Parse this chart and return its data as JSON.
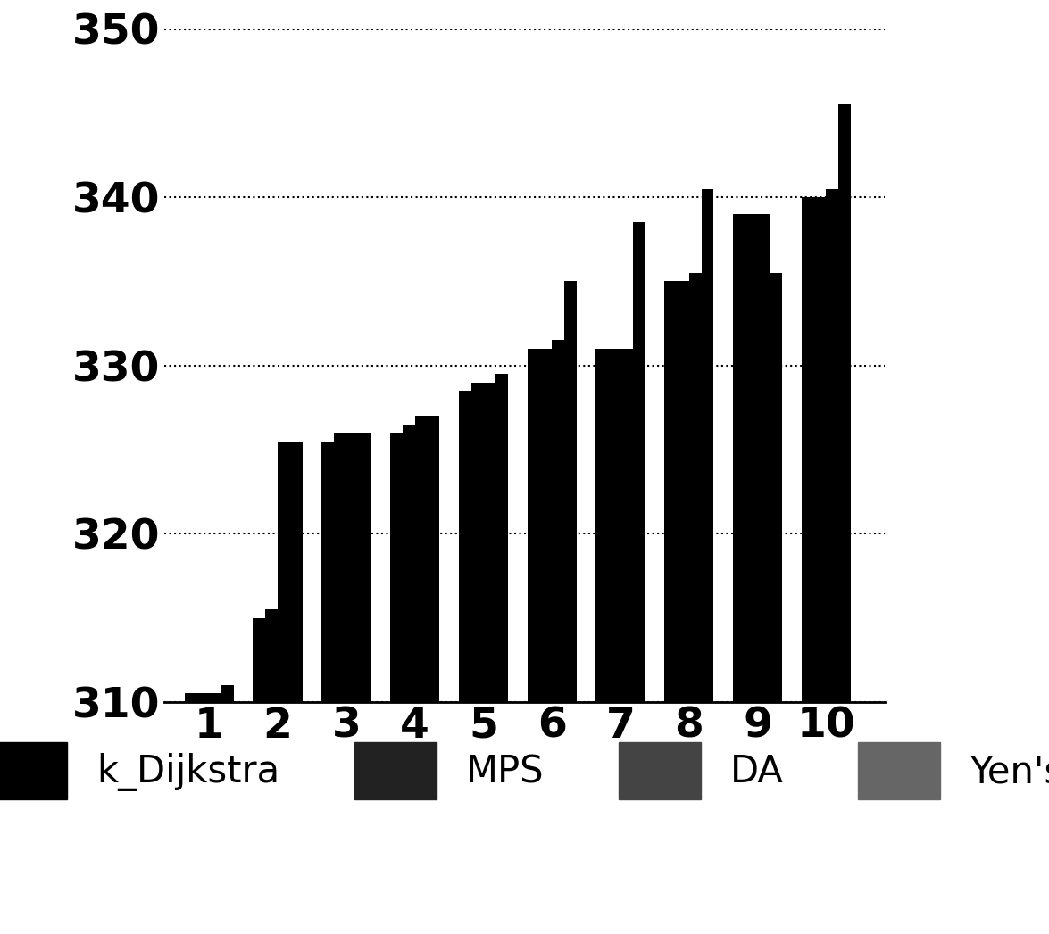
{
  "x_labels": [
    "1",
    "2",
    "3",
    "4",
    "5",
    "6",
    "7",
    "8",
    "9",
    "10"
  ],
  "series": {
    "k_Dijkstra": [
      310.5,
      315.0,
      325.5,
      326.0,
      328.5,
      331.0,
      331.0,
      335.0,
      339.0,
      340.0
    ],
    "MPS": [
      310.5,
      315.5,
      326.0,
      326.5,
      329.0,
      331.0,
      331.0,
      335.0,
      339.0,
      340.0
    ],
    "DA": [
      310.5,
      325.5,
      326.0,
      327.0,
      329.0,
      331.5,
      331.0,
      335.5,
      339.0,
      340.5
    ],
    "Yens": [
      311.0,
      325.5,
      326.0,
      327.0,
      329.5,
      335.0,
      338.5,
      340.5,
      335.5,
      345.5
    ]
  },
  "colors": {
    "k_Dijkstra": "#000000",
    "MPS": "#000000",
    "DA": "#000000",
    "Yens": "#000000"
  },
  "ylim": [
    310,
    350
  ],
  "ymin": 310,
  "yticks": [
    310,
    320,
    330,
    340,
    350
  ],
  "bar_width": 0.18,
  "background_color": "#ffffff",
  "grid_color": "#000000",
  "legend_labels": [
    "k_Dijkstra",
    "MPS",
    "DA",
    "Yen's"
  ],
  "legend_colors": [
    "#000000",
    "#222222",
    "#444444",
    "#666666"
  ]
}
